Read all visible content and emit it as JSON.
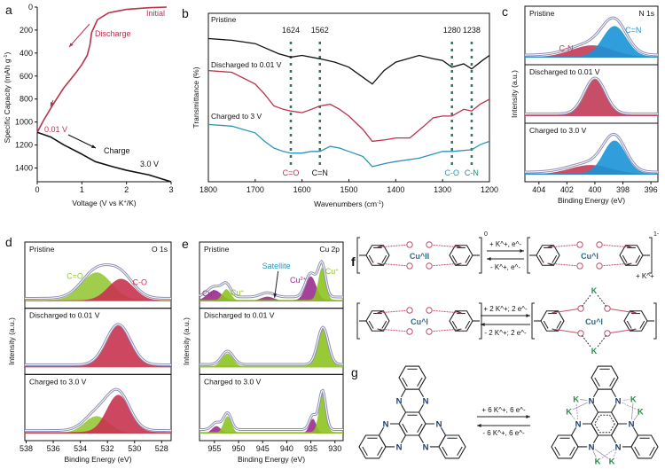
{
  "panel_letters": [
    "a",
    "b",
    "c",
    "d",
    "e",
    "f",
    "g"
  ],
  "chart_data": [
    {
      "id": "a",
      "type": "line",
      "xlabel": "Voltage (V vs K^+/K)",
      "ylabel": "Specific Capacity (mAh g^-1)",
      "xlim": [
        0,
        3
      ],
      "ylim": [
        0,
        1520
      ],
      "y_inverted": true,
      "xticks": [
        0,
        1,
        2,
        3
      ],
      "yticks": [
        0,
        200,
        400,
        600,
        800,
        1000,
        1200,
        1400
      ],
      "series": [
        {
          "name": "Discharge",
          "color": "#b8334c",
          "points": [
            [
              2.9,
              0
            ],
            [
              2.5,
              5
            ],
            [
              2.0,
              20
            ],
            [
              1.6,
              50
            ],
            [
              1.35,
              110
            ],
            [
              1.22,
              220
            ],
            [
              1.18,
              330
            ],
            [
              1.12,
              420
            ],
            [
              1.0,
              500
            ],
            [
              0.85,
              580
            ],
            [
              0.6,
              700
            ],
            [
              0.35,
              850
            ],
            [
              0.15,
              980
            ],
            [
              0,
              1090
            ]
          ]
        },
        {
          "name": "Charge",
          "color": "#111111",
          "points": [
            [
              0,
              1090
            ],
            [
              0.3,
              1130
            ],
            [
              0.6,
              1200
            ],
            [
              1.0,
              1280
            ],
            [
              1.3,
              1345
            ],
            [
              1.7,
              1390
            ],
            [
              2.0,
              1420
            ],
            [
              2.5,
              1460
            ],
            [
              3.0,
              1520
            ]
          ]
        }
      ],
      "annotations": {
        "initial": "Initial",
        "discharge": "Discharge",
        "end_discharge": "0.01 V",
        "charge": "Charge",
        "end_charge": "3.0 V"
      }
    },
    {
      "id": "b",
      "type": "line",
      "xlabel": "Wavenumbers (cm^-1)",
      "ylabel": "Transmittance (%)",
      "xlim": [
        1800,
        1200
      ],
      "ylim": [
        0,
        100
      ],
      "xticks": [
        1800,
        1700,
        1600,
        1500,
        1400,
        1300,
        1200
      ],
      "series": [
        {
          "name": "Pristine",
          "color": "#111111",
          "points": [
            [
              1800,
              85
            ],
            [
              1750,
              84
            ],
            [
              1700,
              82
            ],
            [
              1650,
              76
            ],
            [
              1624,
              74
            ],
            [
              1600,
              75
            ],
            [
              1562,
              73
            ],
            [
              1530,
              71
            ],
            [
              1500,
              68
            ],
            [
              1470,
              62
            ],
            [
              1450,
              58
            ],
            [
              1425,
              66
            ],
            [
              1400,
              71
            ],
            [
              1350,
              75
            ],
            [
              1320,
              73
            ],
            [
              1300,
              72
            ],
            [
              1280,
              68
            ],
            [
              1255,
              70
            ],
            [
              1238,
              67
            ],
            [
              1215,
              72
            ],
            [
              1200,
              75
            ]
          ]
        },
        {
          "name": "Discharged to 0.01 V",
          "color": "#b8334c",
          "points": [
            [
              1800,
              66
            ],
            [
              1750,
              65
            ],
            [
              1700,
              58
            ],
            [
              1680,
              52
            ],
            [
              1660,
              45
            ],
            [
              1640,
              43
            ],
            [
              1624,
              42
            ],
            [
              1600,
              41
            ],
            [
              1580,
              43
            ],
            [
              1562,
              45
            ],
            [
              1540,
              46
            ],
            [
              1520,
              43
            ],
            [
              1500,
              39
            ],
            [
              1470,
              31
            ],
            [
              1450,
              24
            ],
            [
              1420,
              25
            ],
            [
              1400,
              26
            ],
            [
              1370,
              26
            ],
            [
              1340,
              33
            ],
            [
              1320,
              38
            ],
            [
              1300,
              39
            ],
            [
              1280,
              39
            ],
            [
              1255,
              43
            ],
            [
              1238,
              42
            ],
            [
              1220,
              46
            ],
            [
              1200,
              49
            ]
          ]
        },
        {
          "name": "Charged to 3 V",
          "color": "#2a94b8",
          "points": [
            [
              1800,
              34
            ],
            [
              1750,
              33
            ],
            [
              1700,
              29
            ],
            [
              1680,
              24
            ],
            [
              1660,
              20
            ],
            [
              1640,
              18
            ],
            [
              1624,
              17
            ],
            [
              1600,
              17
            ],
            [
              1580,
              18
            ],
            [
              1562,
              18
            ],
            [
              1540,
              21
            ],
            [
              1520,
              20
            ],
            [
              1500,
              18
            ],
            [
              1470,
              15
            ],
            [
              1450,
              9
            ],
            [
              1420,
              11
            ],
            [
              1400,
              12
            ],
            [
              1350,
              14
            ],
            [
              1300,
              18
            ],
            [
              1280,
              18
            ],
            [
              1238,
              19
            ],
            [
              1220,
              22
            ],
            [
              1200,
              24
            ]
          ]
        }
      ],
      "markers": [
        {
          "wavenumber": 1624,
          "label": "1624",
          "bond": "C=O",
          "bond_color": "#b8334c"
        },
        {
          "wavenumber": 1562,
          "label": "1562",
          "bond": "C=N",
          "bond_color": "#111111"
        },
        {
          "wavenumber": 1280,
          "label": "1280",
          "bond": "C-O",
          "bond_color": "#2a94b8"
        },
        {
          "wavenumber": 1238,
          "label": "1238",
          "bond": "C-N",
          "bond_color": "#2e8a6a"
        }
      ],
      "marker_color": "#2e7d5a"
    },
    {
      "id": "c",
      "type": "area",
      "title": "N 1s",
      "xlabel": "Binding Energy (eV)",
      "ylabel": "Intensity (a.u.)",
      "xlim": [
        405,
        395.5
      ],
      "xticks": [
        404,
        402,
        400,
        398,
        396
      ],
      "subpanels": [
        {
          "label": "Pristine",
          "peaks": [
            {
              "name": "C-N",
              "center": 400.2,
              "height": 0.28,
              "width": 1.5,
              "color": "#c23a55",
              "label_side": "left"
            },
            {
              "name": "C=N",
              "center": 398.6,
              "height": 0.72,
              "width": 0.85,
              "color": "#1a93d6",
              "label_side": "right"
            }
          ]
        },
        {
          "label": "Discharged to 0.01 V",
          "peaks": [
            {
              "name": "C-N",
              "center": 400.0,
              "height": 0.85,
              "width": 0.75,
              "color": "#c23a55"
            }
          ]
        },
        {
          "label": "Charged to 3.0 V",
          "peaks": [
            {
              "name": "C-N",
              "center": 400.3,
              "height": 0.22,
              "width": 1.5,
              "color": "#c23a55"
            },
            {
              "name": "C=N",
              "center": 398.6,
              "height": 0.78,
              "width": 0.8,
              "color": "#1a93d6"
            }
          ]
        }
      ]
    },
    {
      "id": "d",
      "type": "area",
      "title": "O 1s",
      "xlabel": "Binding Energy (eV)",
      "ylabel": "Intensity (a.u.)",
      "xlim": [
        538.1,
        527.3
      ],
      "xticks": [
        538,
        536,
        534,
        532,
        530,
        528
      ],
      "subpanels": [
        {
          "label": "Pristine",
          "peaks": [
            {
              "name": "C=O",
              "center": 532.8,
              "height": 0.58,
              "width": 1.1,
              "color": "#97c83a",
              "label_side": "left"
            },
            {
              "name": "C-O",
              "center": 531.0,
              "height": 0.45,
              "width": 0.95,
              "color": "#c8334f",
              "label_side": "right"
            }
          ]
        },
        {
          "label": "Discharged to 0.01 V",
          "peaks": [
            {
              "name": "C-O",
              "center": 531.2,
              "height": 0.85,
              "width": 0.9,
              "color": "#c8334f"
            }
          ]
        },
        {
          "label": "Charged to 3.0 V",
          "peaks": [
            {
              "name": "C=O",
              "center": 532.8,
              "height": 0.35,
              "width": 0.9,
              "color": "#97c83a"
            },
            {
              "name": "C-O",
              "center": 531.2,
              "height": 0.78,
              "width": 0.85,
              "color": "#c8334f"
            }
          ]
        }
      ]
    },
    {
      "id": "e",
      "type": "area",
      "title": "Cu 2p",
      "xlabel": "Binding Energy (eV)",
      "ylabel": "Intensity (a.u.)",
      "xlim": [
        958.1,
        928.3
      ],
      "xticks": [
        955,
        950,
        945,
        940,
        935,
        930
      ],
      "subpanels": [
        {
          "label": "Pristine",
          "peaks": [
            {
              "name": "Cu^2+",
              "center": 955.0,
              "height": 0.22,
              "width": 1.5,
              "color": "#9a2d8c",
              "label_side": "left"
            },
            {
              "name": "Cu^+",
              "center": 952.5,
              "height": 0.24,
              "width": 0.9,
              "color": "#8cc420",
              "label_side": "right"
            },
            {
              "name": "Satellite",
              "center": 944.0,
              "height": 0.09,
              "width": 1.4,
              "color": "#9a2d8c",
              "label_side": "top",
              "label_color": "#2a9ac0"
            },
            {
              "name": "Cu^2+",
              "center": 935.0,
              "height": 0.5,
              "width": 1.1,
              "color": "#9a2d8c",
              "label_side": "left"
            },
            {
              "name": "Cu^+",
              "center": 932.7,
              "height": 0.68,
              "width": 0.75,
              "color": "#8cc420",
              "label_side": "right"
            }
          ]
        },
        {
          "label": "Discharged to 0.01 V",
          "peaks": [
            {
              "name": "Cu^+",
              "center": 952.3,
              "height": 0.28,
              "width": 1.2,
              "color": "#8cc420"
            },
            {
              "name": "Cu^+",
              "center": 932.5,
              "height": 0.78,
              "width": 1.1,
              "color": "#8cc420"
            }
          ]
        },
        {
          "label": "Charged to 3.0 V",
          "peaks": [
            {
              "name": "Cu^2+",
              "center": 954.6,
              "height": 0.15,
              "width": 0.9,
              "color": "#9a2d8c"
            },
            {
              "name": "Cu^+",
              "center": 952.3,
              "height": 0.35,
              "width": 0.8,
              "color": "#8cc420"
            },
            {
              "name": "Cu^2+",
              "center": 934.6,
              "height": 0.3,
              "width": 0.7,
              "color": "#9a2d8c"
            },
            {
              "name": "Cu^+",
              "center": 932.6,
              "height": 0.82,
              "width": 0.7,
              "color": "#8cc420"
            }
          ]
        }
      ]
    }
  ],
  "scheme_f": {
    "row1": {
      "left_metal": "Cu^II",
      "right_metal": "Cu^I",
      "left_charge": "0",
      "right_charge": "1-",
      "counter_ion": "+ K^+",
      "forward": "+ K^+,   e^-",
      "reverse": "- K^+,   e^-"
    },
    "row2": {
      "left_metal": "Cu^I",
      "right_metal": "Cu^I",
      "k_label": "K",
      "forward": "+ 2 K^+; 2 e^-",
      "reverse": "- 2 K^+; 2 e^-"
    },
    "oxygen": "O"
  },
  "scheme_g": {
    "nitrogen": "N",
    "potassium": "K",
    "forward": "+ 6 K^+,  6 e^-",
    "reverse": "- 6 K^+,  6 e^-"
  },
  "colors": {
    "oxygen": "#c0506a",
    "metal": "#2a6a8a",
    "nitrogen": "#1f3d6b",
    "potassium": "#2e8a4a"
  }
}
